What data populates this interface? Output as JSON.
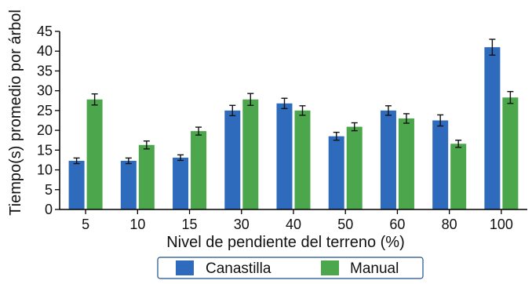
{
  "chart_data": {
    "type": "bar",
    "title": "",
    "xlabel": "Nivel de pendiente del terreno (%)",
    "ylabel": "Tiempo(s) promedio por árbol",
    "categories": [
      "5",
      "10",
      "15",
      "30",
      "40",
      "50",
      "60",
      "80",
      "100"
    ],
    "ylim": [
      0,
      45
    ],
    "yticks": [
      0,
      5,
      10,
      15,
      20,
      25,
      30,
      35,
      40,
      45
    ],
    "grid": false,
    "legend_position": "bottom-center",
    "series": [
      {
        "name": "Canastilla",
        "color": "#2e6bbd",
        "values": [
          12.3,
          12.3,
          13.1,
          25.0,
          26.8,
          18.5,
          25.0,
          22.5,
          41.0
        ],
        "errors": [
          0.7,
          0.7,
          0.7,
          1.3,
          1.3,
          1.0,
          1.2,
          1.4,
          2.0
        ]
      },
      {
        "name": "Manual",
        "color": "#4ca64c",
        "values": [
          27.8,
          16.3,
          19.8,
          27.8,
          25.0,
          20.9,
          23.0,
          16.6,
          28.3
        ],
        "errors": [
          1.4,
          1.0,
          1.0,
          1.5,
          1.2,
          1.0,
          1.2,
          0.9,
          1.5
        ]
      }
    ]
  }
}
